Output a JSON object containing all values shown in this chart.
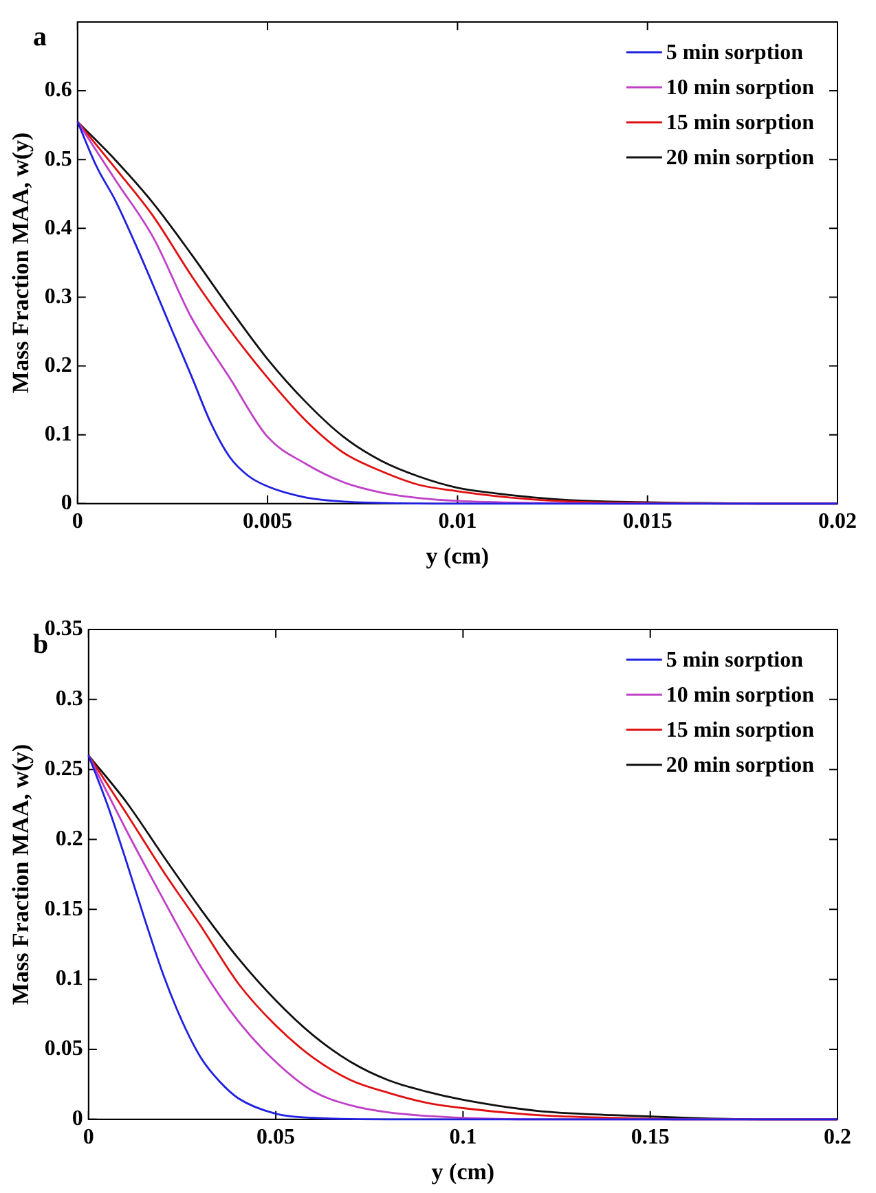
{
  "chart_data": [
    {
      "type": "line",
      "annotations": [
        "a"
      ],
      "xlabel": "y (cm)",
      "ylabel": "Mass Fraction MAA, w(y)",
      "xlim": [
        0,
        0.02
      ],
      "ylim": [
        0,
        0.7
      ],
      "xticks": [
        0,
        0.005,
        0.01,
        0.015,
        0.02
      ],
      "yticks": [
        0,
        0.1,
        0.2,
        0.3,
        0.4,
        0.5,
        0.6
      ],
      "legend": "top right",
      "series": [
        {
          "name": "5 min sorption",
          "color": "#2020e0",
          "x": [
            0,
            0.0005,
            0.001,
            0.0015,
            0.002,
            0.0025,
            0.003,
            0.0035,
            0.004,
            0.0045,
            0.005,
            0.006,
            0.007,
            0.008,
            0.01,
            0.02
          ],
          "values": [
            0.555,
            0.49,
            0.44,
            0.38,
            0.316,
            0.25,
            0.185,
            0.118,
            0.068,
            0.04,
            0.025,
            0.009,
            0.003,
            0.001,
            0,
            0
          ]
        },
        {
          "name": "10 min sorption",
          "color": "#c040c8",
          "x": [
            0,
            0.001,
            0.002,
            0.003,
            0.004,
            0.005,
            0.006,
            0.007,
            0.008,
            0.009,
            0.01,
            0.012,
            0.014,
            0.02
          ],
          "values": [
            0.555,
            0.47,
            0.386,
            0.27,
            0.183,
            0.097,
            0.058,
            0.031,
            0.016,
            0.008,
            0.004,
            0.001,
            0,
            0
          ]
        },
        {
          "name": "15 min sorption",
          "color": "#e01010",
          "x": [
            0,
            0.001,
            0.002,
            0.003,
            0.004,
            0.005,
            0.006,
            0.007,
            0.008,
            0.009,
            0.01,
            0.011,
            0.012,
            0.013,
            0.015,
            0.017,
            0.02
          ],
          "values": [
            0.555,
            0.487,
            0.417,
            0.331,
            0.253,
            0.183,
            0.121,
            0.074,
            0.047,
            0.027,
            0.018,
            0.011,
            0.006,
            0.003,
            0.001,
            0,
            0
          ]
        },
        {
          "name": "20 min sorption",
          "color": "#101010",
          "x": [
            0,
            0.001,
            0.002,
            0.003,
            0.004,
            0.005,
            0.006,
            0.007,
            0.008,
            0.009,
            0.01,
            0.011,
            0.012,
            0.013,
            0.014,
            0.016,
            0.018,
            0.02
          ],
          "values": [
            0.555,
            0.499,
            0.436,
            0.362,
            0.284,
            0.21,
            0.148,
            0.097,
            0.062,
            0.039,
            0.023,
            0.015,
            0.009,
            0.005,
            0.003,
            0.001,
            0,
            0
          ]
        }
      ]
    },
    {
      "type": "line",
      "annotations": [
        "b"
      ],
      "xlabel": "y (cm)",
      "ylabel": "Mass Fraction MAA, w(y)",
      "xlim": [
        0,
        0.2
      ],
      "ylim": [
        0,
        0.35
      ],
      "xticks": [
        0,
        0.05,
        0.1,
        0.15,
        0.2
      ],
      "yticks": [
        0,
        0.05,
        0.1,
        0.15,
        0.2,
        0.25,
        0.3,
        0.35
      ],
      "legend": "top right",
      "series": [
        {
          "name": "5 min sorption",
          "color": "#2020e0",
          "x": [
            0,
            0.005,
            0.01,
            0.015,
            0.02,
            0.025,
            0.03,
            0.035,
            0.04,
            0.05,
            0.06,
            0.08,
            0.2
          ],
          "values": [
            0.26,
            0.225,
            0.185,
            0.143,
            0.103,
            0.07,
            0.044,
            0.027,
            0.015,
            0.004,
            0.001,
            0,
            0
          ]
        },
        {
          "name": "10 min sorption",
          "color": "#c040c8",
          "x": [
            0,
            0.01,
            0.02,
            0.03,
            0.04,
            0.05,
            0.06,
            0.07,
            0.08,
            0.1,
            0.12,
            0.2
          ],
          "values": [
            0.26,
            0.207,
            0.157,
            0.109,
            0.07,
            0.041,
            0.02,
            0.01,
            0.005,
            0.001,
            0,
            0
          ]
        },
        {
          "name": "15 min sorption",
          "color": "#e01010",
          "x": [
            0,
            0.01,
            0.02,
            0.03,
            0.04,
            0.05,
            0.06,
            0.07,
            0.08,
            0.09,
            0.1,
            0.12,
            0.14,
            0.16,
            0.2
          ],
          "values": [
            0.26,
            0.219,
            0.177,
            0.138,
            0.097,
            0.067,
            0.044,
            0.028,
            0.019,
            0.012,
            0.008,
            0.003,
            0.001,
            0,
            0
          ]
        },
        {
          "name": "20 min sorption",
          "color": "#101010",
          "x": [
            0,
            0.01,
            0.02,
            0.03,
            0.04,
            0.05,
            0.06,
            0.07,
            0.08,
            0.09,
            0.1,
            0.12,
            0.14,
            0.16,
            0.18,
            0.2
          ],
          "values": [
            0.26,
            0.227,
            0.188,
            0.15,
            0.115,
            0.085,
            0.06,
            0.041,
            0.028,
            0.02,
            0.014,
            0.006,
            0.003,
            0.001,
            0,
            0
          ]
        }
      ]
    }
  ]
}
